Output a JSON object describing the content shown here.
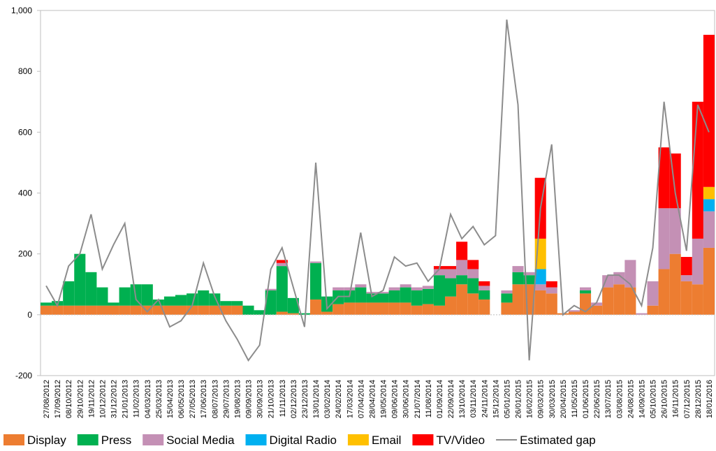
{
  "chart_data": {
    "type": "bar",
    "stacked": true,
    "categories": [
      "27/08/2012",
      "17/09/2012",
      "08/10/2012",
      "29/10/2012",
      "19/11/2012",
      "10/12/2012",
      "31/12/2012",
      "21/01/2013",
      "11/02/2013",
      "04/03/2013",
      "25/03/2013",
      "15/04/2013",
      "06/05/2013",
      "27/05/2013",
      "17/06/2013",
      "08/07/2013",
      "29/07/2013",
      "19/08/2013",
      "09/09/2013",
      "30/09/2013",
      "21/10/2013",
      "11/11/2013",
      "02/12/2013",
      "23/12/2013",
      "13/01/2014",
      "03/02/2014",
      "24/02/2014",
      "17/03/2014",
      "07/04/2014",
      "28/04/2014",
      "19/05/2014",
      "09/06/2014",
      "30/06/2014",
      "21/07/2014",
      "11/08/2014",
      "01/09/2014",
      "22/09/2014",
      "13/10/2014",
      "03/11/2014",
      "24/11/2014",
      "15/12/2014",
      "05/01/2015",
      "26/01/2015",
      "16/02/2015",
      "09/03/2015",
      "30/03/2015",
      "20/04/2015",
      "11/05/2015",
      "01/06/2015",
      "22/06/2015",
      "13/07/2015",
      "03/08/2015",
      "24/08/2015",
      "14/09/2015",
      "05/10/2015",
      "26/10/2015",
      "16/11/2015",
      "07/12/2015",
      "28/12/2015",
      "18/01/2016"
    ],
    "series": [
      {
        "name": "Display",
        "color": "#ed7d31",
        "values": [
          30,
          30,
          30,
          30,
          30,
          30,
          30,
          30,
          30,
          30,
          30,
          30,
          30,
          30,
          30,
          30,
          30,
          30,
          0,
          0,
          0,
          10,
          5,
          0,
          50,
          10,
          35,
          40,
          40,
          40,
          40,
          40,
          40,
          30,
          35,
          30,
          60,
          100,
          70,
          50,
          null,
          40,
          100,
          100,
          80,
          70,
          5,
          10,
          70,
          30,
          90,
          100,
          90,
          0,
          30,
          150,
          200,
          110,
          100,
          220
        ]
      },
      {
        "name": "Press",
        "color": "#00b050",
        "values": [
          10,
          15,
          80,
          170,
          110,
          60,
          10,
          60,
          70,
          70,
          20,
          30,
          35,
          40,
          50,
          40,
          15,
          15,
          30,
          15,
          80,
          150,
          50,
          5,
          120,
          50,
          45,
          40,
          50,
          30,
          30,
          40,
          50,
          50,
          50,
          100,
          60,
          30,
          50,
          30,
          null,
          30,
          40,
          30,
          0,
          0,
          0,
          0,
          10,
          0,
          0,
          0,
          0,
          0,
          0,
          0,
          0,
          0,
          0,
          0
        ]
      },
      {
        "name": "Social Media",
        "color": "#c490b5",
        "values": [
          0,
          0,
          0,
          0,
          0,
          0,
          0,
          0,
          0,
          0,
          0,
          0,
          0,
          0,
          0,
          0,
          0,
          0,
          0,
          0,
          5,
          10,
          0,
          0,
          5,
          0,
          10,
          10,
          10,
          5,
          5,
          10,
          10,
          10,
          10,
          20,
          30,
          50,
          30,
          15,
          null,
          10,
          20,
          10,
          20,
          20,
          0,
          5,
          10,
          10,
          40,
          40,
          90,
          5,
          80,
          200,
          150,
          20,
          150,
          120
        ]
      },
      {
        "name": "Digital Radio",
        "color": "#00b0f0",
        "values": [
          0,
          0,
          0,
          0,
          0,
          0,
          0,
          0,
          0,
          0,
          0,
          0,
          0,
          0,
          0,
          0,
          0,
          0,
          0,
          0,
          0,
          0,
          0,
          0,
          0,
          0,
          0,
          0,
          0,
          0,
          0,
          0,
          0,
          0,
          0,
          0,
          0,
          0,
          0,
          0,
          null,
          0,
          0,
          0,
          50,
          0,
          0,
          0,
          0,
          0,
          0,
          0,
          0,
          0,
          0,
          0,
          0,
          0,
          0,
          40
        ]
      },
      {
        "name": "Email",
        "color": "#ffc000",
        "values": [
          0,
          0,
          0,
          0,
          0,
          0,
          0,
          0,
          0,
          0,
          0,
          0,
          0,
          0,
          0,
          0,
          0,
          0,
          0,
          0,
          0,
          0,
          0,
          0,
          0,
          0,
          0,
          0,
          0,
          0,
          0,
          0,
          0,
          0,
          0,
          0,
          0,
          0,
          0,
          0,
          null,
          0,
          0,
          0,
          100,
          0,
          0,
          0,
          0,
          0,
          0,
          0,
          0,
          0,
          0,
          0,
          0,
          0,
          0,
          40
        ]
      },
      {
        "name": "TV/Video",
        "color": "#ff0000",
        "values": [
          0,
          0,
          0,
          0,
          0,
          0,
          0,
          0,
          0,
          0,
          0,
          0,
          0,
          0,
          0,
          0,
          0,
          0,
          0,
          0,
          0,
          10,
          0,
          0,
          0,
          0,
          0,
          0,
          0,
          0,
          0,
          0,
          0,
          0,
          0,
          10,
          10,
          60,
          30,
          15,
          null,
          0,
          0,
          0,
          200,
          20,
          0,
          0,
          0,
          0,
          0,
          0,
          0,
          0,
          0,
          200,
          180,
          60,
          450,
          500
        ]
      },
      {
        "name": "Estimated gap",
        "type": "line",
        "color": "#8c8c8c",
        "values": [
          95,
          30,
          160,
          200,
          330,
          150,
          230,
          300,
          50,
          10,
          50,
          -40,
          -20,
          30,
          170,
          60,
          -20,
          -80,
          -150,
          -100,
          150,
          220,
          90,
          -40,
          500,
          20,
          60,
          60,
          270,
          60,
          80,
          190,
          160,
          170,
          110,
          150,
          330,
          250,
          290,
          230,
          260,
          970,
          690,
          -150,
          350,
          560,
          0,
          30,
          10,
          40,
          130,
          130,
          100,
          30,
          220,
          700,
          400,
          210,
          690,
          600
        ]
      }
    ],
    "ylim": [
      -200,
      1000
    ],
    "yticks": [
      -200,
      0,
      200,
      400,
      600,
      800,
      {
        "value": 1000,
        "label": "1,000"
      }
    ]
  }
}
